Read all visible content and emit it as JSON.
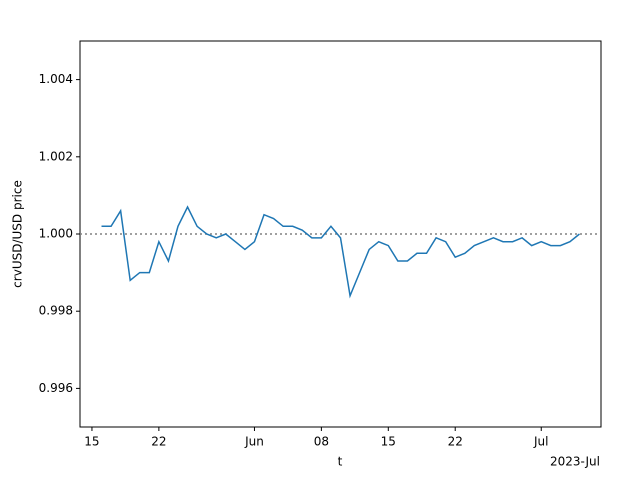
{
  "chart_data": {
    "type": "line",
    "xlabel": "t",
    "ylabel": "crvUSD/USD price",
    "x_offset_label": "2023-Jul",
    "x": [
      "2023-05-16",
      "2023-05-17",
      "2023-05-18",
      "2023-05-19",
      "2023-05-20",
      "2023-05-21",
      "2023-05-22",
      "2023-05-23",
      "2023-05-24",
      "2023-05-25",
      "2023-05-26",
      "2023-05-27",
      "2023-05-28",
      "2023-05-29",
      "2023-05-30",
      "2023-05-31",
      "2023-06-01",
      "2023-06-02",
      "2023-06-03",
      "2023-06-04",
      "2023-06-05",
      "2023-06-06",
      "2023-06-07",
      "2023-06-08",
      "2023-06-09",
      "2023-06-10",
      "2023-06-11",
      "2023-06-12",
      "2023-06-13",
      "2023-06-14",
      "2023-06-15",
      "2023-06-16",
      "2023-06-17",
      "2023-06-18",
      "2023-06-19",
      "2023-06-20",
      "2023-06-21",
      "2023-06-22",
      "2023-06-23",
      "2023-06-24",
      "2023-06-25",
      "2023-06-26",
      "2023-06-27",
      "2023-06-28",
      "2023-06-29",
      "2023-06-30",
      "2023-07-01",
      "2023-07-02",
      "2023-07-03",
      "2023-07-04",
      "2023-07-05"
    ],
    "series": [
      {
        "name": "crvUSD/USD",
        "color": "#1f77b4",
        "values": [
          1.0002,
          1.0002,
          1.0006,
          0.9988,
          0.999,
          0.999,
          0.9998,
          0.9993,
          1.0002,
          1.0007,
          1.0002,
          1.0,
          0.9999,
          1.0,
          0.9998,
          0.9996,
          0.9998,
          1.0005,
          1.0004,
          1.0002,
          1.0002,
          1.0001,
          0.9999,
          0.9999,
          1.0002,
          0.9999,
          0.9984,
          0.999,
          0.9996,
          0.9998,
          0.9997,
          0.9993,
          0.9993,
          0.9995,
          0.9995,
          0.9999,
          0.9998,
          0.9994,
          0.9995,
          0.9997,
          0.9998,
          0.9999,
          0.9998,
          0.9998,
          0.9999,
          0.9997,
          0.9998,
          0.9997,
          0.9997,
          0.9998,
          1.0
        ]
      }
    ],
    "reference_line": 1,
    "reference_color": "#808080",
    "xlim": [
      "2023-05-13T18:00",
      "2023-07-07T06:00"
    ],
    "xticks": [
      {
        "value": "2023-05-15",
        "label": "15"
      },
      {
        "value": "2023-05-22",
        "label": "22"
      },
      {
        "value": "2023-06-01",
        "label": "Jun"
      },
      {
        "value": "2023-06-08",
        "label": "08"
      },
      {
        "value": "2023-06-15",
        "label": "15"
      },
      {
        "value": "2023-06-22",
        "label": "22"
      },
      {
        "value": "2023-07-01",
        "label": "Jul"
      }
    ],
    "ylim": [
      0.995,
      1.005
    ],
    "yticks": [
      0.996,
      0.998,
      {
        "value": 1,
        "label": "1.000"
      },
      1.002,
      1.004
    ]
  }
}
